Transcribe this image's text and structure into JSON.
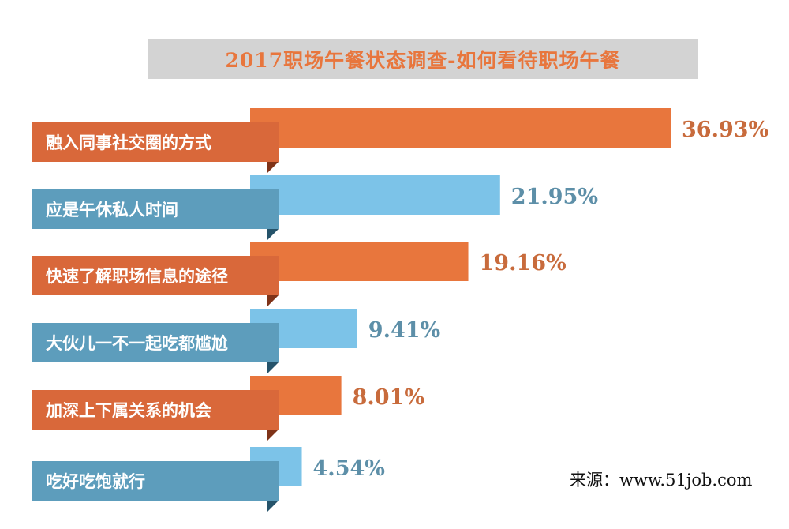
{
  "title": "2017职场午餐状态调查-如何看待职场午餐",
  "source": "来源：www.51job.com",
  "colors": {
    "orange": "#e8763d",
    "orange_label_bg": "#d9683a",
    "orange_fold": "#7f3318",
    "blue": "#7cc3e8",
    "blue_label_bg": "#5d9dbc",
    "blue_fold": "#25536a",
    "orange_text": "#c86b3c",
    "blue_text": "#5d8fa8",
    "title_bg": "#d3d3d3"
  },
  "chart_data": {
    "type": "bar",
    "orientation": "horizontal",
    "title": "2017职场午餐状态调查-如何看待职场午餐",
    "xlabel": "",
    "ylabel": "",
    "categories": [
      "融入同事社交圈的方式",
      "应是午休私人时间",
      "快速了解职场信息的途径",
      "大伙儿一不一起吃都尴尬",
      "加深上下属关系的机会",
      "吃好吃饱就行"
    ],
    "values": [
      36.93,
      21.95,
      19.16,
      9.41,
      8.01,
      4.54
    ],
    "value_labels": [
      "36.93%",
      "21.95%",
      "19.16%",
      "9.41%",
      "8.01%",
      "4.54%"
    ],
    "bar_colors": [
      "orange",
      "blue",
      "orange",
      "blue",
      "orange",
      "blue"
    ],
    "unit": "%",
    "grid": false,
    "legend": "none"
  }
}
